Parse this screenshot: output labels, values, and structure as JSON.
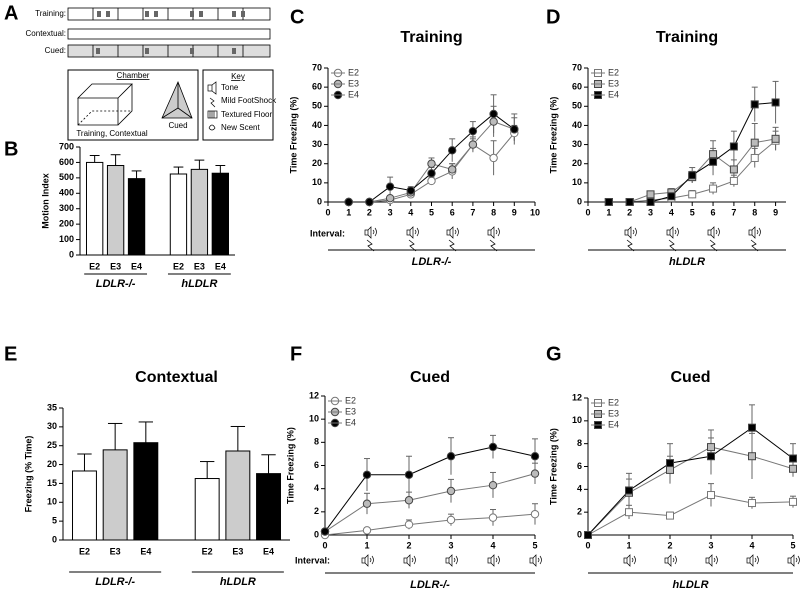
{
  "diagram": {
    "panel": "A",
    "rows": [
      "Training:",
      "Contextual:",
      "Cued:"
    ],
    "chamber": {
      "title": "Chamber",
      "labels": [
        "Training, Contextual",
        "Cued"
      ]
    },
    "key": {
      "title": "Key",
      "items": [
        "Tone",
        "Mild FootShock",
        "Textured Floor",
        "New Scent"
      ]
    }
  },
  "chart_data": [
    {
      "type": "bar",
      "panel": "B",
      "ylabel": "Motion Index",
      "categories": [
        "E2",
        "E3",
        "E4",
        "E2",
        "E3",
        "E4"
      ],
      "groups": [
        "LDLR-/-",
        "hLDLR"
      ],
      "values": [
        600,
        580,
        495,
        525,
        555,
        530
      ],
      "errors": [
        45,
        70,
        50,
        45,
        60,
        50
      ],
      "colors": [
        "#ffffff",
        "#cccccc",
        "#000000",
        "#ffffff",
        "#cccccc",
        "#000000"
      ],
      "ylim": [
        0,
        700
      ],
      "yticks": [
        0,
        100,
        200,
        300,
        400,
        500,
        600,
        700
      ]
    },
    {
      "type": "line",
      "panel": "C",
      "title": "Training",
      "ylabel": "Time Freezing (%)",
      "interval_label": "Interval:",
      "group": "LDLR-/-",
      "x": [
        1,
        2,
        3,
        4,
        5,
        6,
        7,
        8,
        9
      ],
      "marker": "circle",
      "legend": "upper left",
      "series": [
        {
          "name": "E2",
          "color": "#ffffff",
          "values": [
            0,
            0,
            1,
            4,
            11,
            16,
            30,
            23,
            36
          ],
          "errors": [
            0,
            0,
            1,
            1,
            2,
            4,
            3,
            9,
            4
          ]
        },
        {
          "name": "E3",
          "color": "#bbbbbb",
          "values": [
            0,
            0,
            2,
            5,
            20,
            17,
            30,
            42,
            38
          ],
          "errors": [
            0,
            0,
            1,
            2,
            3,
            3,
            4,
            8,
            6
          ]
        },
        {
          "name": "E4",
          "color": "#000000",
          "values": [
            0,
            0,
            8,
            6,
            15,
            27,
            37,
            46,
            38
          ],
          "errors": [
            0,
            0,
            5,
            2,
            3,
            6,
            5,
            10,
            8
          ]
        }
      ],
      "xlim": [
        0,
        10
      ],
      "xticks": [
        0,
        1,
        2,
        3,
        4,
        5,
        6,
        7,
        8,
        9,
        10
      ],
      "ylim": [
        0,
        70
      ],
      "yticks": [
        0,
        10,
        20,
        30,
        40,
        50,
        60,
        70
      ]
    },
    {
      "type": "line",
      "panel": "D",
      "title": "Training",
      "ylabel": "Time Freezing (%)",
      "group": "hLDLR",
      "x": [
        1,
        2,
        3,
        4,
        5,
        6,
        7,
        8,
        9
      ],
      "marker": "square",
      "legend": "upper left",
      "series": [
        {
          "name": "E2",
          "color": "#ffffff",
          "values": [
            0,
            0,
            1,
            2,
            4,
            7,
            11,
            23,
            32
          ],
          "errors": [
            0,
            0,
            1,
            1,
            2,
            3,
            3,
            5,
            5
          ]
        },
        {
          "name": "E3",
          "color": "#bbbbbb",
          "values": [
            0,
            0,
            4,
            5,
            13,
            25,
            17,
            31,
            33
          ],
          "errors": [
            0,
            0,
            1,
            2,
            3,
            7,
            5,
            10,
            6
          ]
        },
        {
          "name": "E4",
          "color": "#000000",
          "values": [
            0,
            0,
            0,
            3,
            14,
            21,
            29,
            51,
            52
          ],
          "errors": [
            0,
            0,
            1,
            2,
            4,
            7,
            8,
            9,
            11
          ]
        }
      ],
      "xlim": [
        0,
        9.5
      ],
      "xticks": [
        0,
        1,
        2,
        3,
        4,
        5,
        6,
        7,
        8,
        9
      ],
      "ylim": [
        0,
        70
      ],
      "yticks": [
        0,
        10,
        20,
        30,
        40,
        50,
        60,
        70
      ]
    },
    {
      "type": "bar",
      "panel": "E",
      "title": "Contextual",
      "ylabel": "Freezing (% Time)",
      "categories": [
        "E2",
        "E3",
        "E4",
        "E2",
        "E3",
        "E4"
      ],
      "groups": [
        "LDLR-/-",
        "hLDLR"
      ],
      "values": [
        18.3,
        23.9,
        25.8,
        16.3,
        23.6,
        17.6
      ],
      "errors": [
        4.5,
        7,
        5.5,
        4.5,
        6.5,
        5
      ],
      "colors": [
        "#ffffff",
        "#cccccc",
        "#000000",
        "#ffffff",
        "#cccccc",
        "#000000"
      ],
      "ylim": [
        0,
        35
      ],
      "yticks": [
        0,
        5,
        10,
        15,
        20,
        25,
        30,
        35
      ]
    },
    {
      "type": "line",
      "panel": "F",
      "title": "Cued",
      "ylabel": "Time Freezing (%)",
      "interval_label": "Interval:",
      "group": "LDLR-/-",
      "x": [
        0,
        1,
        2,
        3,
        4,
        5
      ],
      "marker": "circle",
      "legend": "upper left",
      "series": [
        {
          "name": "E2",
          "color": "#ffffff",
          "values": [
            0,
            0.4,
            0.9,
            1.3,
            1.5,
            1.8
          ],
          "errors": [
            0,
            0.2,
            0.4,
            0.5,
            0.7,
            0.9
          ]
        },
        {
          "name": "E3",
          "color": "#bbbbbb",
          "values": [
            0.3,
            2.7,
            3.0,
            3.8,
            4.3,
            5.3
          ],
          "errors": [
            0,
            0.9,
            0.7,
            1.0,
            1.1,
            0.9
          ]
        },
        {
          "name": "E4",
          "color": "#000000",
          "values": [
            0.3,
            5.2,
            5.2,
            6.8,
            7.6,
            6.8
          ],
          "errors": [
            0,
            1.4,
            1.6,
            1.6,
            1.0,
            1.5
          ]
        }
      ],
      "xlim": [
        0,
        5
      ],
      "xticks": [
        0,
        1,
        2,
        3,
        4,
        5
      ],
      "ylim": [
        0,
        12
      ],
      "yticks": [
        0,
        2,
        4,
        6,
        8,
        10,
        12
      ]
    },
    {
      "type": "line",
      "panel": "G",
      "title": "Cued",
      "ylabel": "Time Freezing (%)",
      "group": "hLDLR",
      "x": [
        0,
        1,
        2,
        3,
        4,
        5
      ],
      "marker": "square",
      "legend": "upper left",
      "series": [
        {
          "name": "E2",
          "color": "#ffffff",
          "values": [
            0,
            2.0,
            1.7,
            3.5,
            2.8,
            2.9
          ],
          "errors": [
            0,
            0.6,
            0.3,
            1.0,
            0.5,
            0.5
          ]
        },
        {
          "name": "E3",
          "color": "#bbbbbb",
          "values": [
            0,
            3.7,
            5.7,
            7.7,
            6.9,
            5.8
          ],
          "errors": [
            0,
            1.2,
            1.2,
            1.5,
            2.0,
            0.7
          ]
        },
        {
          "name": "E4",
          "color": "#000000",
          "values": [
            0,
            3.9,
            6.3,
            6.9,
            9.4,
            6.7
          ],
          "errors": [
            0,
            1.5,
            1.7,
            1.6,
            2.0,
            1.3
          ]
        }
      ],
      "xlim": [
        0,
        5
      ],
      "xticks": [
        0,
        1,
        2,
        3,
        4,
        5
      ],
      "ylim": [
        0,
        12
      ],
      "yticks": [
        0,
        2,
        4,
        6,
        8,
        10,
        12
      ]
    }
  ]
}
